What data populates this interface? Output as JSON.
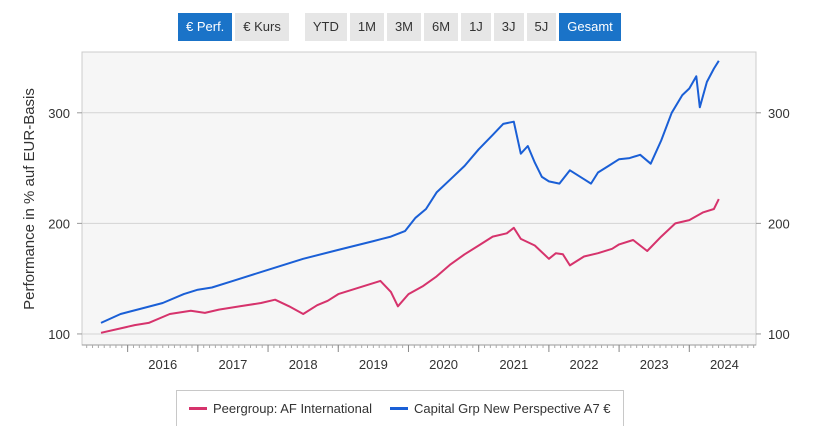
{
  "buttons": {
    "perf": "€ Perf.",
    "kurs": "€ Kurs",
    "ytd": "YTD",
    "m1": "1M",
    "m3": "3M",
    "m6": "6M",
    "j1": "1J",
    "j3": "3J",
    "j5": "5J",
    "gesamt": "Gesamt"
  },
  "chart_data": {
    "type": "line",
    "ylabel": "Performance in % auf EUR-Basis",
    "ylim": [
      90,
      355
    ],
    "xlim": [
      2015.35,
      2024.95
    ],
    "yticks": [
      100,
      200,
      300
    ],
    "xticks": [
      "2016",
      "2017",
      "2018",
      "2019",
      "2020",
      "2021",
      "2022",
      "2023",
      "2024"
    ],
    "legend_position": "bottom",
    "series": [
      {
        "name": "Peergroup: AF International",
        "color": "#d6336c",
        "x": [
          2015.62,
          2015.9,
          2016.1,
          2016.3,
          2016.6,
          2016.9,
          2017.1,
          2017.3,
          2017.6,
          2017.9,
          2018.1,
          2018.3,
          2018.5,
          2018.7,
          2018.85,
          2019.0,
          2019.2,
          2019.4,
          2019.6,
          2019.75,
          2019.85,
          2020.0,
          2020.2,
          2020.4,
          2020.6,
          2020.8,
          2021.0,
          2021.2,
          2021.4,
          2021.5,
          2021.6,
          2021.8,
          2022.0,
          2022.1,
          2022.2,
          2022.3,
          2022.5,
          2022.7,
          2022.9,
          2023.0,
          2023.2,
          2023.4,
          2023.6,
          2023.8,
          2024.0,
          2024.2,
          2024.35,
          2024.42
        ],
        "y": [
          101,
          105,
          108,
          110,
          118,
          121,
          119,
          122,
          125,
          128,
          131,
          125,
          118,
          126,
          130,
          136,
          140,
          144,
          148,
          138,
          125,
          136,
          143,
          152,
          163,
          172,
          180,
          188,
          191,
          196,
          186,
          180,
          168,
          173,
          172,
          162,
          170,
          173,
          177,
          181,
          185,
          175,
          188,
          200,
          203,
          210,
          213,
          222
        ]
      },
      {
        "name": "Capital Grp New Perspective A7 €",
        "color": "#1a5fd6",
        "x": [
          2015.62,
          2015.9,
          2016.2,
          2016.5,
          2016.8,
          2017.0,
          2017.2,
          2017.5,
          2018.0,
          2018.5,
          2019.0,
          2019.5,
          2019.75,
          2019.95,
          2020.1,
          2020.25,
          2020.4,
          2020.6,
          2020.8,
          2021.0,
          2021.2,
          2021.35,
          2021.5,
          2021.6,
          2021.7,
          2021.8,
          2021.9,
          2022.0,
          2022.15,
          2022.3,
          2022.5,
          2022.6,
          2022.7,
          2022.85,
          2023.0,
          2023.15,
          2023.3,
          2023.45,
          2023.6,
          2023.75,
          2023.9,
          2024.0,
          2024.1,
          2024.15,
          2024.25,
          2024.35,
          2024.42
        ],
        "y": [
          110,
          118,
          123,
          128,
          136,
          140,
          142,
          148,
          158,
          168,
          176,
          184,
          188,
          193,
          205,
          213,
          228,
          240,
          252,
          267,
          280,
          290,
          292,
          263,
          270,
          255,
          242,
          238,
          236,
          248,
          240,
          236,
          246,
          252,
          258,
          259,
          262,
          254,
          275,
          300,
          316,
          322,
          333,
          305,
          328,
          340,
          347
        ]
      }
    ]
  }
}
